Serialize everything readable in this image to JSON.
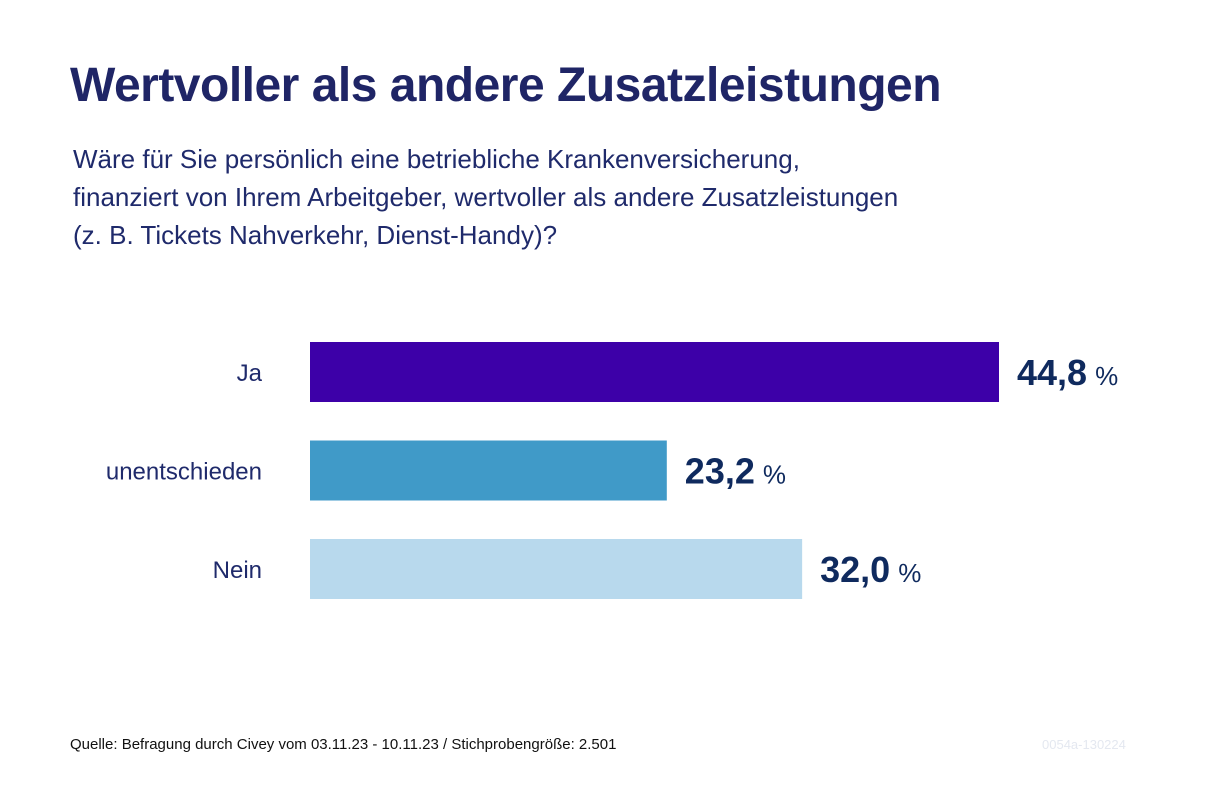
{
  "title": "Wertvoller als andere Zusatzleistungen",
  "subtitle_lines": [
    "Wäre für Sie persönlich eine betriebliche Krankenversicherung,",
    "finanziert von Ihrem Arbeitgeber, wertvoller als andere Zusatzleistungen",
    "(z. B. Tickets Nahverkehr, Dienst-Handy)?"
  ],
  "chart_data": {
    "type": "bar",
    "orientation": "horizontal",
    "categories": [
      "Ja",
      "unentschieden",
      "Nein"
    ],
    "values": [
      44.8,
      23.2,
      32.0
    ],
    "value_labels": [
      "44,8",
      "23,2",
      "32,0"
    ],
    "unit": "%",
    "colors": [
      "#3d00a8",
      "#409ac8",
      "#b8d9ed"
    ],
    "xlim": [
      0,
      44.8
    ],
    "grid": false,
    "legend": "none"
  },
  "source": "Quelle: Befragung durch Civey vom 03.11.23 - 10.11.23 / Stichprobengröße: 2.501",
  "code": "0054a-130224"
}
